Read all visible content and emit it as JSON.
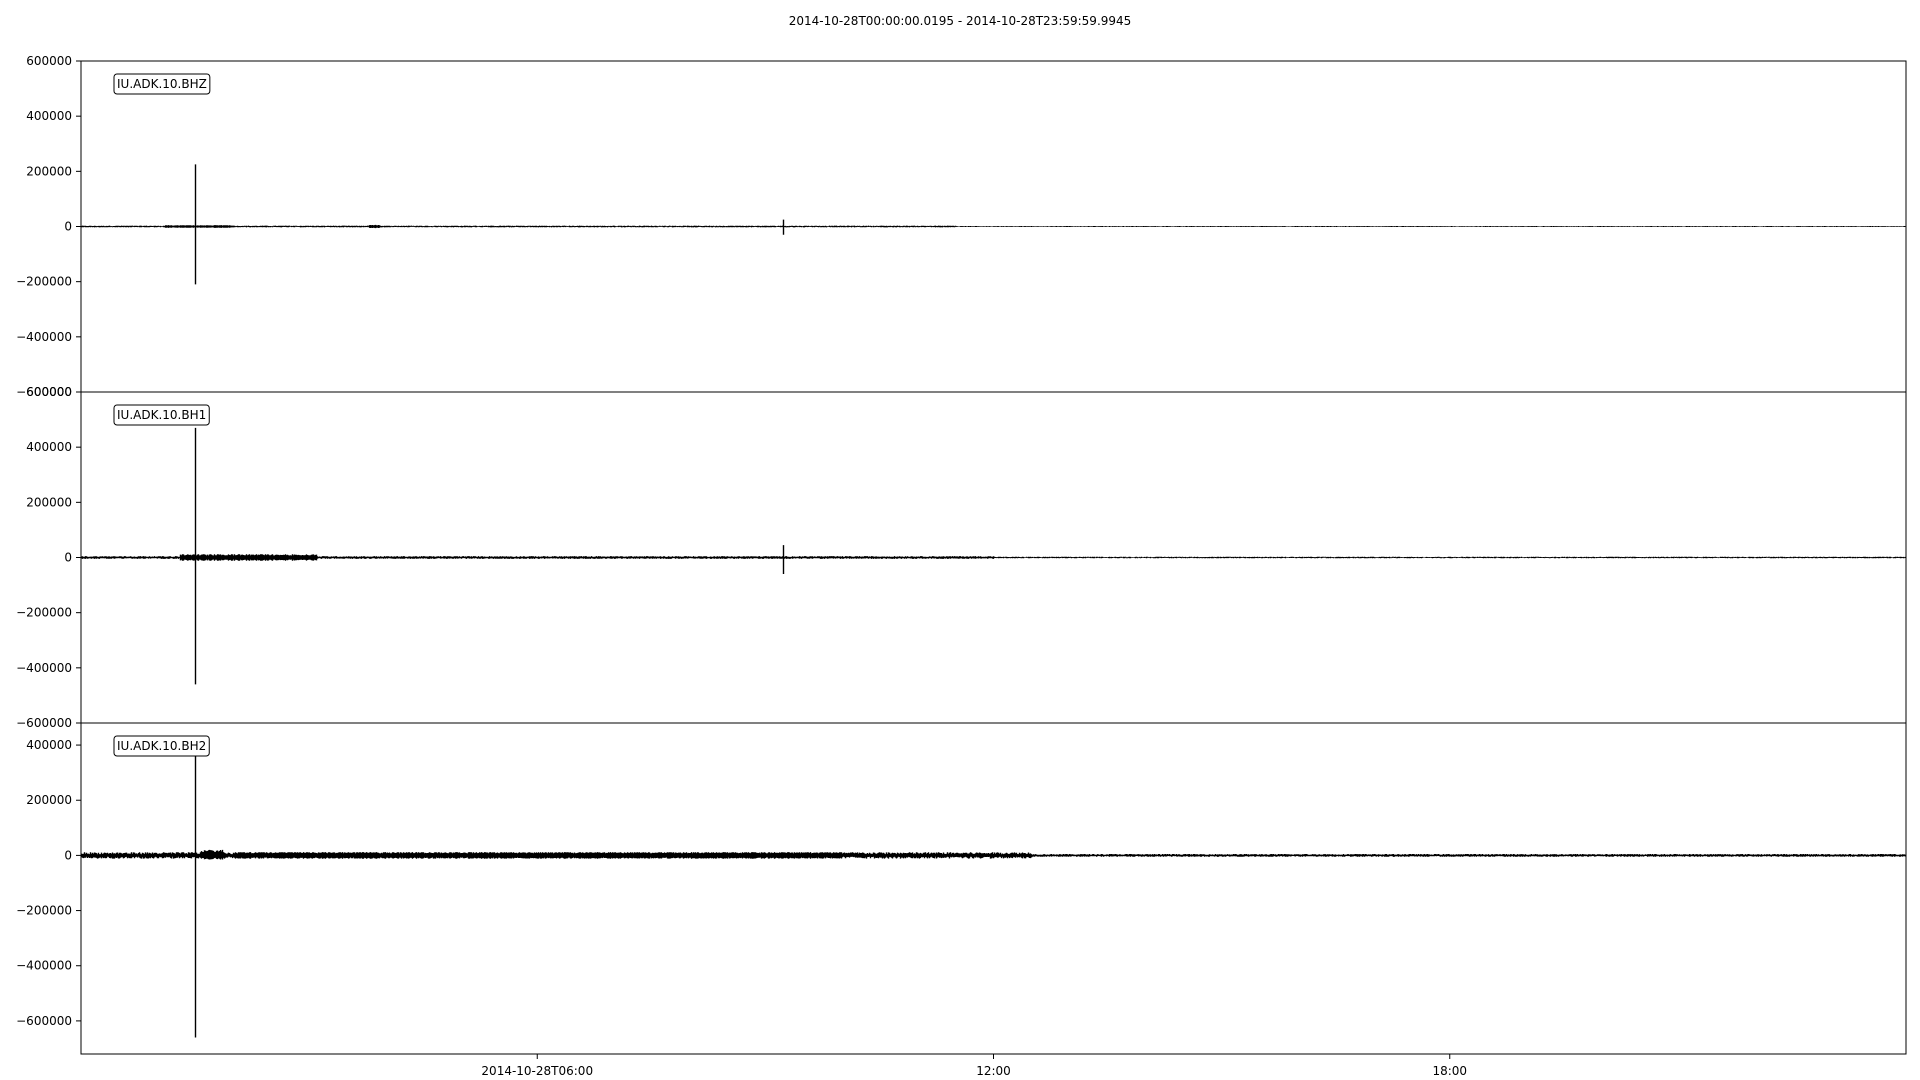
{
  "figure": {
    "title": "2014-10-28T00:00:00.0195  -  2014-10-28T23:59:59.9945"
  },
  "chart_data": [
    {
      "type": "line",
      "label": "IU.ADK.10.BHZ",
      "ylim": [
        -600000,
        600000
      ],
      "yticks": [
        600000,
        400000,
        200000,
        0,
        -200000,
        -400000,
        -600000
      ],
      "ytick_labels": [
        "600000",
        "400000",
        "200000",
        "0",
        "−200000",
        "−400000",
        "−600000"
      ],
      "noise_amplitude": 2500,
      "bursts": [
        {
          "time_h": 1.55,
          "min": -5000,
          "max": 5000,
          "width_h": 0.9
        },
        {
          "time_h": 3.85,
          "min": -6000,
          "max": 6000,
          "width_h": 0.15
        },
        {
          "time_h": 1.5,
          "min": -210000,
          "max": 225000,
          "width_h": 0.0
        },
        {
          "time_h": 9.23,
          "min": -30000,
          "max": 25000,
          "width_h": 0.0
        }
      ],
      "decay": {
        "start_h": 11.5,
        "factor": 0.6
      }
    },
    {
      "type": "line",
      "label": "IU.ADK.10.BH1",
      "ylim": [
        -600000,
        600000
      ],
      "yticks": [
        600000,
        400000,
        200000,
        0,
        -200000,
        -400000,
        -600000
      ],
      "ytick_labels": [
        "600000",
        "400000",
        "200000",
        "0",
        "−200000",
        "−400000",
        "−600000"
      ],
      "noise_amplitude": 4000,
      "bursts": [
        {
          "time_h": 2.2,
          "min": -12000,
          "max": 12000,
          "width_h": 1.8
        },
        {
          "time_h": 1.5,
          "min": -460000,
          "max": 470000,
          "width_h": 0.0
        },
        {
          "time_h": 9.23,
          "min": -60000,
          "max": 45000,
          "width_h": 0.0
        }
      ],
      "decay": {
        "start_h": 12.0,
        "factor": 0.55
      }
    },
    {
      "type": "line",
      "label": "IU.ADK.10.BH2",
      "ylim": [
        -720000,
        480000
      ],
      "yticks": [
        400000,
        200000,
        0,
        -200000,
        -400000,
        -600000
      ],
      "ytick_labels": [
        "400000",
        "200000",
        "0",
        "−200000",
        "−400000",
        "−600000"
      ],
      "noise_amplitude": 9000,
      "bursts": [
        {
          "time_h": 1.5,
          "min": -660000,
          "max": 420000,
          "width_h": 0.0
        },
        {
          "time_h": 1.72,
          "min": -15000,
          "max": 20000,
          "width_h": 0.3
        },
        {
          "time_h": 6.0,
          "min": -12000,
          "max": 12000,
          "width_h": 8.0
        }
      ],
      "decay": {
        "start_h": 12.5,
        "factor": 0.45
      }
    }
  ],
  "shared_x": {
    "range_h": [
      0,
      24
    ],
    "ticks_h": [
      6,
      12,
      18
    ],
    "tick_labels": [
      "2014-10-28T06:00",
      "12:00",
      "18:00"
    ]
  }
}
